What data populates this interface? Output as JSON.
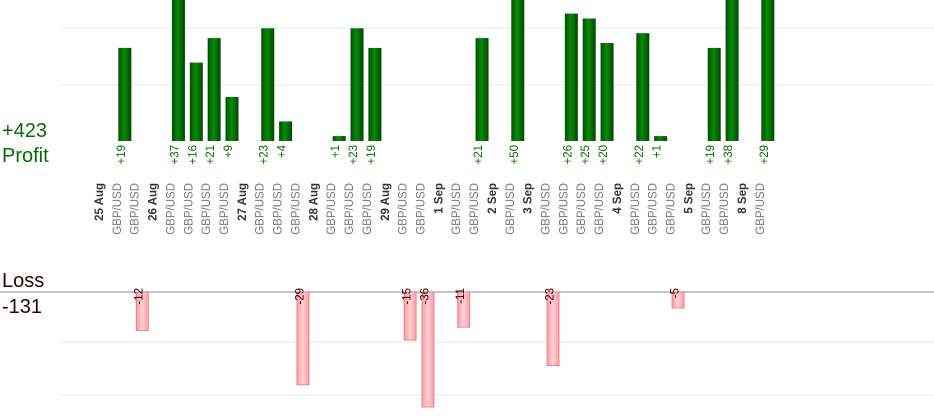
{
  "summary": {
    "profit_total": "+423",
    "profit_label": "Profit",
    "loss_label": "Loss",
    "loss_total": "-131"
  },
  "colors": {
    "profit_bar": "#006400",
    "profit_bar_highlight": "#0a8a0a",
    "profit_text": "#007000",
    "loss_bar_fill": "#ffb6b9",
    "loss_bar_stroke": "#e8707a",
    "loss_text": "#330000",
    "date_text": "#333333",
    "pair_text": "#777777",
    "baseline": "#888888",
    "grid": "#e8e8e8"
  },
  "chart_data": {
    "type": "bar",
    "series": [
      {
        "name": "Profit",
        "values": [
          19,
          37,
          16,
          21,
          9,
          23,
          4,
          1,
          23,
          19,
          21,
          50,
          26,
          25,
          20,
          22,
          1,
          19,
          38,
          29
        ]
      },
      {
        "name": "Loss",
        "values": [
          -12,
          -29,
          -15,
          -36,
          -11,
          -23,
          -5
        ]
      }
    ],
    "groups": [
      {
        "date": "25 Aug",
        "trades": [
          {
            "pair": "GBP/USD",
            "value": 19
          },
          {
            "pair": "GBP/USD",
            "value": -12
          }
        ]
      },
      {
        "date": "26 Aug",
        "trades": [
          {
            "pair": "GBP/USD",
            "value": 37
          },
          {
            "pair": "GBP/USD",
            "value": 16
          },
          {
            "pair": "GBP/USD",
            "value": 21
          },
          {
            "pair": "GBP/USD",
            "value": 9
          }
        ]
      },
      {
        "date": "27 Aug",
        "trades": [
          {
            "pair": "GBP/USD",
            "value": 23
          },
          {
            "pair": "GBP/USD",
            "value": 4
          },
          {
            "pair": "GBP/USD",
            "value": -29
          }
        ]
      },
      {
        "date": "28 Aug",
        "trades": [
          {
            "pair": "GBP/USD",
            "value": 1
          },
          {
            "pair": "GBP/USD",
            "value": 23
          },
          {
            "pair": "GBP/USD",
            "value": 19
          }
        ]
      },
      {
        "date": "29 Aug",
        "trades": [
          {
            "pair": "GBP/USD",
            "value": -15
          },
          {
            "pair": "GBP/USD",
            "value": -36
          }
        ]
      },
      {
        "date": "1 Sep",
        "trades": [
          {
            "pair": "GBP/USD",
            "value": -11
          },
          {
            "pair": "GBP/USD",
            "value": 21
          }
        ]
      },
      {
        "date": "2 Sep",
        "trades": [
          {
            "pair": "GBP/USD",
            "value": 50
          }
        ]
      },
      {
        "date": "3 Sep",
        "trades": [
          {
            "pair": "GBP/USD",
            "value": -23
          },
          {
            "pair": "GBP/USD",
            "value": 26
          },
          {
            "pair": "GBP/USD",
            "value": 25
          },
          {
            "pair": "GBP/USD",
            "value": 20
          }
        ]
      },
      {
        "date": "4 Sep",
        "trades": [
          {
            "pair": "GBP/USD",
            "value": 22
          },
          {
            "pair": "GBP/USD",
            "value": 1
          },
          {
            "pair": "GBP/USD",
            "value": -5
          }
        ]
      },
      {
        "date": "5 Sep",
        "trades": [
          {
            "pair": "GBP/USD",
            "value": 19
          },
          {
            "pair": "GBP/USD",
            "value": 38
          }
        ]
      },
      {
        "date": "8 Sep",
        "trades": [
          {
            "pair": "GBP/USD",
            "value": 29
          }
        ]
      }
    ],
    "profit_axis_range": [
      0,
      23
    ],
    "loss_axis_range": [
      -36,
      0
    ],
    "grid": true
  }
}
